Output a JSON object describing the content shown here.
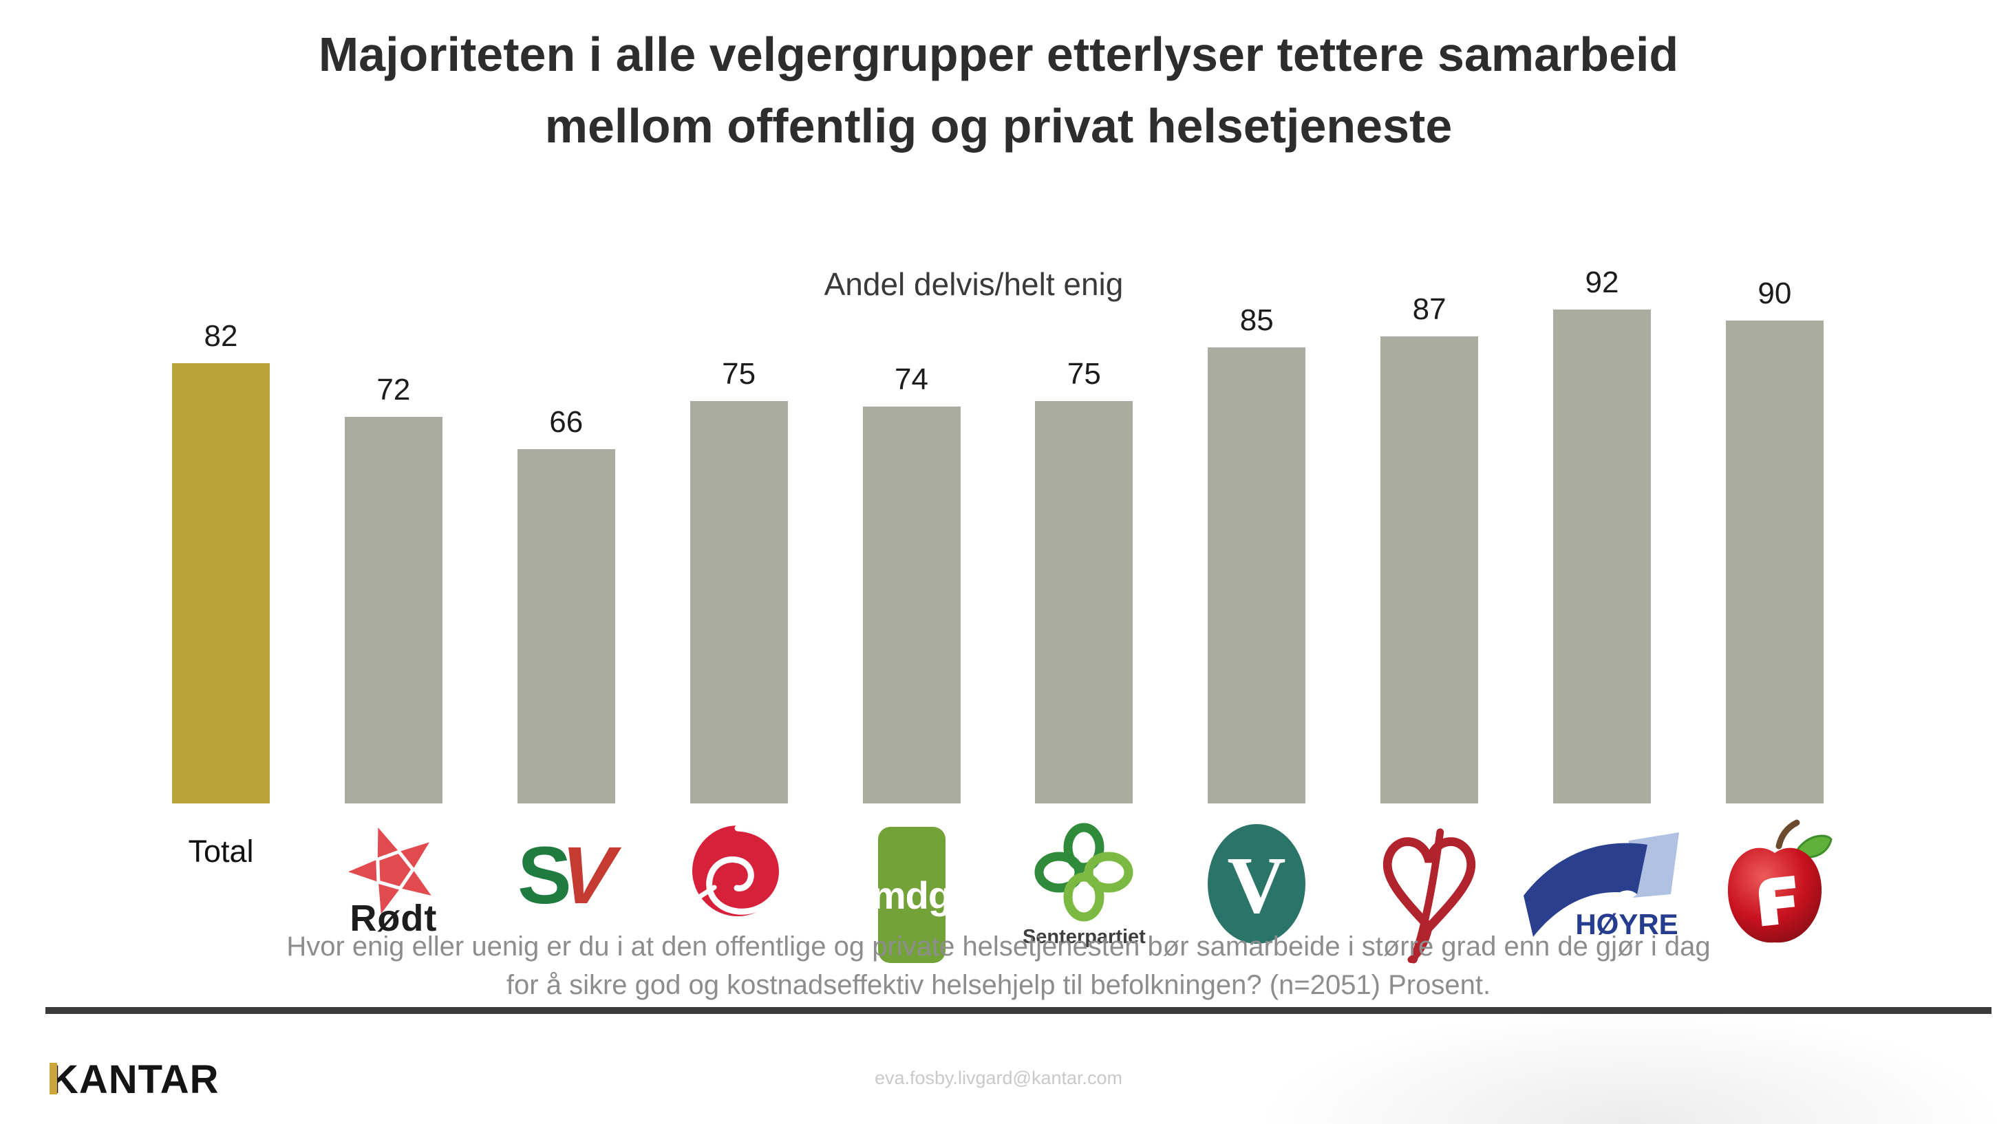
{
  "page": {
    "title_lines": [
      "Majoriteten i alle velgergrupper etterlyser tettere samarbeid",
      "mellom offentlig og privat helsetjeneste"
    ],
    "footnote_lines": [
      "Hvor enig eller uenig er du i at den offentlige og private helsetjenesten bør samarbeide i større grad enn de gjør i dag",
      "for å sikre god og kostnadseffektiv helsehjelp til befolkningen? (n=2051) Prosent."
    ],
    "footer": {
      "brand": "KANTAR",
      "email": "eva.fosby.livgard@kantar.com"
    }
  },
  "chart_data": {
    "type": "bar",
    "title": "Andel delvis/helt enig",
    "categories": [
      "Total",
      "Rødt",
      "SV",
      "Arbeiderpartiet",
      "MDG",
      "Senterpartiet",
      "Venstre",
      "KrF",
      "Høyre",
      "FrP"
    ],
    "values": [
      82,
      72,
      66,
      75,
      74,
      75,
      85,
      87,
      92,
      90
    ],
    "ylim": [
      0,
      100
    ],
    "grid": false,
    "legend": false,
    "data_labels": true,
    "highlight_category": "Total",
    "colors": {
      "highlight": "#b9a43a",
      "default": "#abaca0"
    }
  },
  "logos": {
    "total_label": "Total",
    "rodt_text": "Rødt",
    "sv_s": "S",
    "sv_v": "V",
    "mdg_text": "mdg",
    "sp_text": "Senterpartiet",
    "hoyre_text": "HØYRE"
  }
}
